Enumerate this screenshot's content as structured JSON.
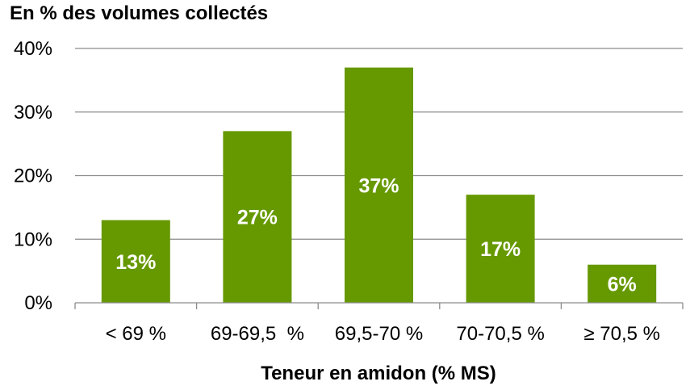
{
  "chart_data": {
    "type": "bar",
    "ylabel": "En % des volumes collectés",
    "xlabel": "Teneur en amidon (% MS)",
    "categories": [
      "< 69 %",
      "69-69,5  %",
      "69,5-70 %",
      "70-70,5 %",
      "≥ 70,5 %"
    ],
    "values": [
      13,
      27,
      37,
      17,
      6
    ],
    "data_labels": [
      "13%",
      "27%",
      "37%",
      "17%",
      "6%"
    ],
    "y_ticks": [
      "0%",
      "10%",
      "20%",
      "30%",
      "40%"
    ],
    "ylim": [
      0,
      40
    ],
    "grid": true,
    "legend": "none",
    "bar_color": "#669900",
    "label_color": "#ffffff"
  }
}
